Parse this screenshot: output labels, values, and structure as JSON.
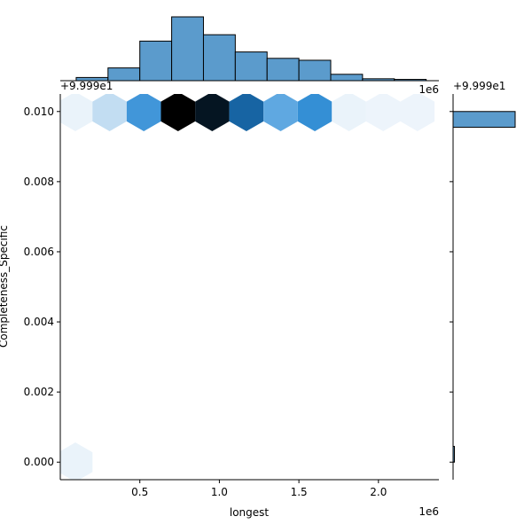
{
  "chart_data": {
    "type": "hexbin",
    "xlabel": "longest",
    "ylabel": "Completeness_Specific",
    "x_multiplier": "1e6",
    "y_offset": "+9.999e1",
    "top_x_multiplier": "1e6",
    "right_y_offset": "+9.999e1",
    "xlim": [
      0.0,
      2.38
    ],
    "ylim": [
      -0.0005,
      0.0105
    ],
    "x_ticks": [
      0.5,
      1.0,
      1.5,
      2.0
    ],
    "x_tick_labels": [
      "0.5",
      "1.0",
      "1.5",
      "2.0"
    ],
    "y_ticks": [
      0.0,
      0.002,
      0.004,
      0.006,
      0.008,
      0.01
    ],
    "y_tick_labels": [
      "0.000",
      "0.002",
      "0.004",
      "0.006",
      "0.008",
      "0.010"
    ],
    "hexbin": {
      "hex_width": 0.215,
      "cells": [
        {
          "x": 0.095,
          "y": 0.01,
          "level": 0.03
        },
        {
          "x": 0.31,
          "y": 0.01,
          "level": 0.16
        },
        {
          "x": 0.525,
          "y": 0.01,
          "level": 0.45
        },
        {
          "x": 0.74,
          "y": 0.01,
          "level": 1.0
        },
        {
          "x": 0.955,
          "y": 0.01,
          "level": 0.9
        },
        {
          "x": 1.17,
          "y": 0.01,
          "level": 0.65
        },
        {
          "x": 1.385,
          "y": 0.01,
          "level": 0.38
        },
        {
          "x": 1.6,
          "y": 0.01,
          "level": 0.48
        },
        {
          "x": 1.815,
          "y": 0.01,
          "level": 0.03
        },
        {
          "x": 2.03,
          "y": 0.01,
          "level": 0.02
        },
        {
          "x": 2.245,
          "y": 0.01,
          "level": 0.02
        },
        {
          "x": 0.095,
          "y": 0.0,
          "level": 0.03
        }
      ]
    },
    "x_histogram": {
      "bin_edges": [
        0.1,
        0.3,
        0.5,
        0.7,
        0.9,
        1.1,
        1.3,
        1.5,
        1.7,
        1.9,
        2.1,
        2.3
      ],
      "counts": [
        5,
        20,
        62,
        100,
        72,
        45,
        35,
        32,
        10,
        3,
        2
      ]
    },
    "y_histogram": {
      "bins": [
        {
          "y_low": 0.00955,
          "y_high": 0.01,
          "count": 100
        },
        {
          "y_low": 0.0,
          "y_high": 0.00045,
          "count": 1
        }
      ]
    },
    "colors": {
      "hist_fill": "#5b9bcc",
      "hist_edge": "#000000",
      "cmap": [
        "#f2f7fc",
        "#d2e5f5",
        "#9ac7e9",
        "#61a9e2",
        "#2b8ad3",
        "#1a6fb5",
        "#0d3a5c",
        "#061a2b",
        "#000000"
      ]
    }
  }
}
